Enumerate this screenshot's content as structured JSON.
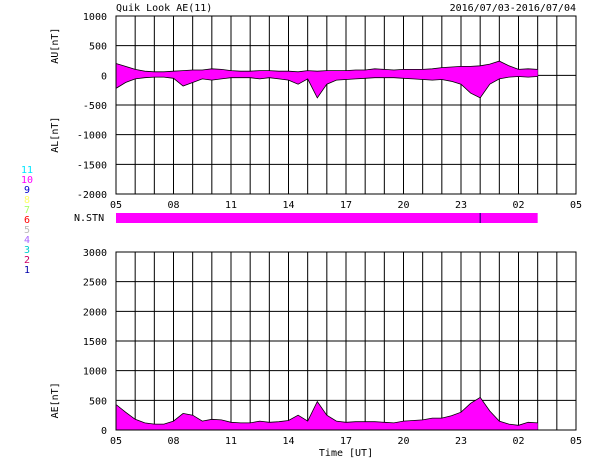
{
  "header": {
    "title": "Quik Look AE(11)",
    "date_range": "2016/07/03-2016/07/04"
  },
  "legend": {
    "items": [
      {
        "label": "11",
        "color": "#00e5ff"
      },
      {
        "label": "10",
        "color": "#ff00ff"
      },
      {
        "label": "9",
        "color": "#0000cc"
      },
      {
        "label": "8",
        "color": "#ffff66"
      },
      {
        "label": "7",
        "color": "#aaff66"
      },
      {
        "label": "6",
        "color": "#ff0000"
      },
      {
        "label": "5",
        "color": "#bbbbbb"
      },
      {
        "label": "4",
        "color": "#aa66ff"
      },
      {
        "label": "3",
        "color": "#00cccc"
      },
      {
        "label": "2",
        "color": "#cc0066"
      },
      {
        "label": "1",
        "color": "#0000aa"
      }
    ]
  },
  "colors": {
    "fill": "#ff00ff",
    "grid": "#000000"
  },
  "chart_data": [
    {
      "type": "area",
      "id": "au-al",
      "ylabel_top": "AU[nT]",
      "ylabel_bottom": "AL[nT]",
      "ylim": [
        -2000,
        1000
      ],
      "yticks": [
        "1000",
        "500",
        "0",
        "-500",
        "-1000",
        "-1500",
        "-2000"
      ],
      "ytick_values": [
        1000,
        500,
        0,
        -500,
        -1000,
        -1500,
        -2000
      ],
      "xlim": [
        0,
        24
      ],
      "xticks": [
        "05",
        "08",
        "11",
        "14",
        "17",
        "20",
        "23",
        "02",
        "05"
      ],
      "x": [
        0,
        0.5,
        1,
        1.5,
        2,
        2.5,
        3,
        3.5,
        4,
        4.5,
        5,
        5.5,
        6,
        6.5,
        7,
        7.5,
        8,
        8.5,
        9,
        9.5,
        10,
        10.5,
        11,
        11.5,
        12,
        12.5,
        13,
        13.5,
        14,
        14.5,
        15,
        15.5,
        16,
        16.5,
        17,
        17.5,
        18,
        18.5,
        19,
        19.5,
        20,
        20.5,
        21,
        21.5,
        22
      ],
      "au": [
        200,
        150,
        100,
        70,
        60,
        60,
        70,
        80,
        90,
        90,
        110,
        100,
        80,
        70,
        70,
        80,
        80,
        70,
        70,
        60,
        80,
        70,
        80,
        80,
        80,
        90,
        90,
        110,
        100,
        90,
        100,
        100,
        100,
        110,
        130,
        140,
        150,
        150,
        160,
        190,
        240,
        160,
        100,
        110,
        100
      ],
      "al": [
        -220,
        -120,
        -60,
        -40,
        -30,
        -30,
        -50,
        -180,
        -120,
        -60,
        -80,
        -60,
        -40,
        -40,
        -40,
        -60,
        -40,
        -60,
        -80,
        -150,
        -60,
        -380,
        -150,
        -80,
        -70,
        -60,
        -50,
        -40,
        -40,
        -40,
        -50,
        -60,
        -70,
        -80,
        -70,
        -100,
        -150,
        -300,
        -380,
        -150,
        -60,
        -30,
        -20,
        -30,
        -20
      ]
    },
    {
      "type": "bar",
      "id": "nstn",
      "label": "N.STN",
      "xlim": [
        0,
        24
      ],
      "range": [
        0,
        22
      ],
      "marker_x": 19
    },
    {
      "type": "area",
      "id": "ae",
      "ylabel": "AE[nT]",
      "xlabel": "Time [UT]",
      "ylim": [
        0,
        3000
      ],
      "yticks": [
        "3000",
        "2500",
        "2000",
        "1500",
        "1000",
        "500",
        "0"
      ],
      "ytick_values": [
        3000,
        2500,
        2000,
        1500,
        1000,
        500,
        0
      ],
      "xlim": [
        0,
        24
      ],
      "xticks": [
        "05",
        "08",
        "11",
        "14",
        "17",
        "20",
        "23",
        "02",
        "05"
      ],
      "x": [
        0,
        0.5,
        1,
        1.5,
        2,
        2.5,
        3,
        3.5,
        4,
        4.5,
        5,
        5.5,
        6,
        6.5,
        7,
        7.5,
        8,
        8.5,
        9,
        9.5,
        10,
        10.5,
        11,
        11.5,
        12,
        12.5,
        13,
        13.5,
        14,
        14.5,
        15,
        15.5,
        16,
        16.5,
        17,
        17.5,
        18,
        18.5,
        19,
        19.5,
        20,
        20.5,
        21,
        21.5,
        22
      ],
      "ae": [
        430,
        300,
        180,
        120,
        100,
        100,
        150,
        280,
        250,
        150,
        180,
        170,
        130,
        120,
        120,
        150,
        130,
        140,
        160,
        250,
        150,
        480,
        250,
        150,
        130,
        140,
        140,
        140,
        130,
        120,
        150,
        160,
        170,
        200,
        200,
        240,
        300,
        450,
        550,
        320,
        150,
        100,
        80,
        130,
        120
      ]
    }
  ]
}
